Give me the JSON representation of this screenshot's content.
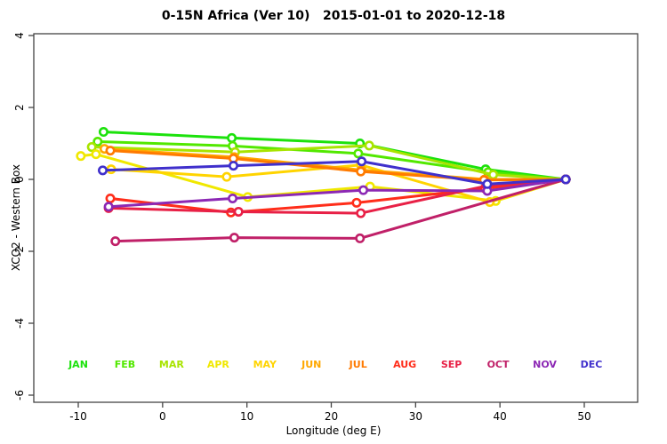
{
  "window": {
    "title": "0-15N Africa (Ver 10)   2015-01-01 to 2020-12-18"
  },
  "chart_data": {
    "type": "line",
    "title": "0-15N Africa (Ver 10)   2015-01-01 to 2020-12-18",
    "xlabel": "Longitude (deg E)",
    "ylabel": "XCO2 - Western Box",
    "xlim": [
      -15.2,
      56.4
    ],
    "ylim": [
      -6.2,
      4.06
    ],
    "x_ticks": [
      -10,
      0,
      10,
      20,
      30,
      40,
      50
    ],
    "y_ticks": [
      4,
      2,
      0,
      -2,
      -4,
      -6
    ],
    "grid": false,
    "marker": "open-circle",
    "legend_position": "inside-bottom-row",
    "legend_note": "month names drawn in series colors along y = -5.1",
    "axis_color": "#444444",
    "text_color": "#000000",
    "background_color": "#ffffff",
    "series": [
      {
        "name": "JAN",
        "color": "#1ce20c",
        "points": [
          [
            -7.0,
            1.32
          ],
          [
            8.2,
            1.15
          ],
          [
            23.4,
            1.0
          ],
          [
            38.3,
            0.28
          ],
          [
            47.8,
            0.0
          ]
        ]
      },
      {
        "name": "FEB",
        "color": "#52e800",
        "points": [
          [
            -7.7,
            1.05
          ],
          [
            8.3,
            0.93
          ],
          [
            23.2,
            0.72
          ],
          [
            38.6,
            0.2
          ],
          [
            47.8,
            0.0
          ]
        ]
      },
      {
        "name": "MAR",
        "color": "#a8e400",
        "points": [
          [
            -8.4,
            0.9
          ],
          [
            8.6,
            0.76
          ],
          [
            24.5,
            0.94
          ],
          [
            39.2,
            0.13
          ],
          [
            47.8,
            0.0
          ]
        ]
      },
      {
        "name": "APR",
        "color": "#f0e800",
        "points": [
          [
            -9.7,
            0.65
          ],
          [
            -7.9,
            0.7
          ],
          [
            10.1,
            -0.49
          ],
          [
            24.6,
            -0.2
          ],
          [
            39.5,
            -0.6
          ],
          [
            47.8,
            0.0
          ]
        ]
      },
      {
        "name": "MAY",
        "color": "#ffd400",
        "points": [
          [
            -6.1,
            0.28
          ],
          [
            7.6,
            0.07
          ],
          [
            23.5,
            0.4
          ],
          [
            38.8,
            -0.63
          ],
          [
            47.8,
            0.0
          ]
        ]
      },
      {
        "name": "JUN",
        "color": "#ffa800",
        "points": [
          [
            -6.9,
            0.85
          ],
          [
            8.5,
            0.62
          ],
          [
            23.6,
            0.26
          ],
          [
            38.2,
            0.0
          ],
          [
            47.8,
            0.0
          ]
        ]
      },
      {
        "name": "JUL",
        "color": "#ff7a00",
        "points": [
          [
            -6.2,
            0.8
          ],
          [
            8.4,
            0.58
          ],
          [
            23.5,
            0.22
          ],
          [
            38.1,
            -0.02
          ],
          [
            47.8,
            0.0
          ]
        ]
      },
      {
        "name": "AUG",
        "color": "#ff2d1a",
        "points": [
          [
            -6.2,
            -0.53
          ],
          [
            8.1,
            -0.92
          ],
          [
            23.0,
            -0.65
          ],
          [
            38.2,
            -0.25
          ],
          [
            47.8,
            0.0
          ]
        ]
      },
      {
        "name": "SEP",
        "color": "#e82046",
        "points": [
          [
            -6.4,
            -0.8
          ],
          [
            9.0,
            -0.9
          ],
          [
            23.5,
            -0.94
          ],
          [
            38.4,
            -0.18
          ],
          [
            47.8,
            0.0
          ]
        ]
      },
      {
        "name": "OCT",
        "color": "#c02068",
        "points": [
          [
            -5.6,
            -1.72
          ],
          [
            8.5,
            -1.62
          ],
          [
            23.4,
            -1.64
          ],
          [
            47.8,
            0.0
          ]
        ]
      },
      {
        "name": "NOV",
        "color": "#8c28b4",
        "points": [
          [
            -6.4,
            -0.76
          ],
          [
            8.3,
            -0.53
          ],
          [
            23.8,
            -0.3
          ],
          [
            38.5,
            -0.32
          ],
          [
            47.8,
            0.0
          ]
        ]
      },
      {
        "name": "DEC",
        "color": "#4030cc",
        "points": [
          [
            -7.1,
            0.25
          ],
          [
            8.4,
            0.38
          ],
          [
            23.6,
            0.5
          ],
          [
            38.5,
            -0.13
          ],
          [
            47.8,
            0.0
          ]
        ]
      }
    ],
    "legend_labels": [
      "JAN",
      "FEB",
      "MAR",
      "APR",
      "MAY",
      "JUN",
      "JUL",
      "AUG",
      "SEP",
      "OCT",
      "NOV",
      "DEC"
    ]
  }
}
